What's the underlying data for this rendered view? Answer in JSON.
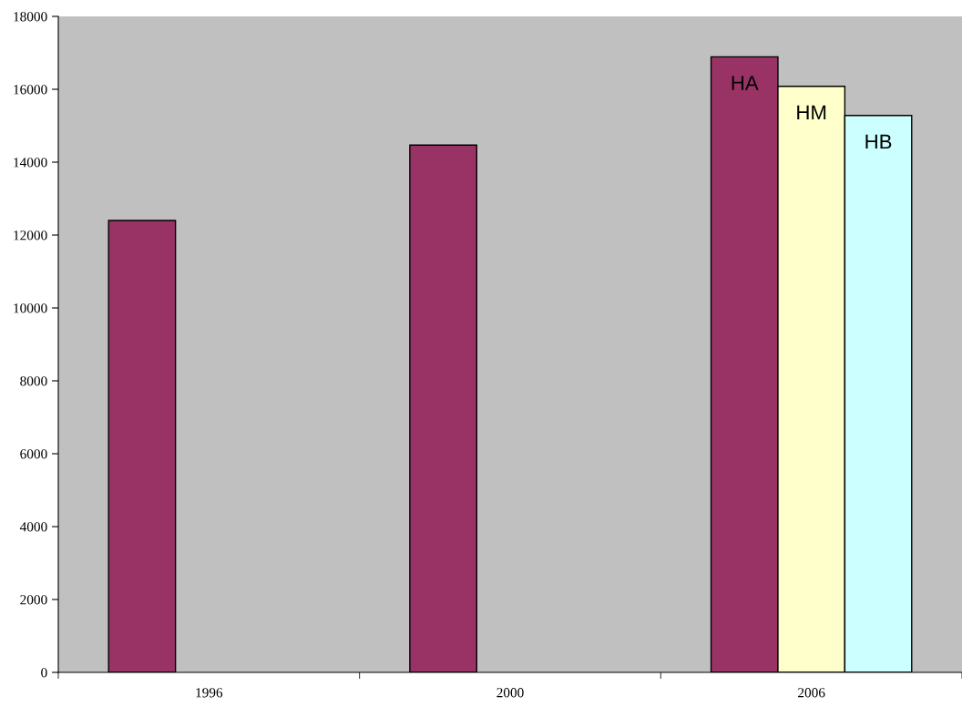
{
  "chart_data": {
    "type": "bar",
    "categories": [
      "1996",
      "2000",
      "2006"
    ],
    "series": [
      {
        "name": "HA",
        "color": "#993366",
        "values": [
          12400,
          14470,
          16890
        ]
      },
      {
        "name": "HM",
        "color": "#ffffcc",
        "values": [
          null,
          null,
          16080
        ]
      },
      {
        "name": "HB",
        "color": "#ccffff",
        "values": [
          null,
          null,
          15280
        ]
      }
    ],
    "ylim": [
      0,
      18000
    ],
    "yticks": [
      0,
      2000,
      4000,
      6000,
      8000,
      10000,
      12000,
      14000,
      16000,
      18000
    ],
    "grid": false
  }
}
